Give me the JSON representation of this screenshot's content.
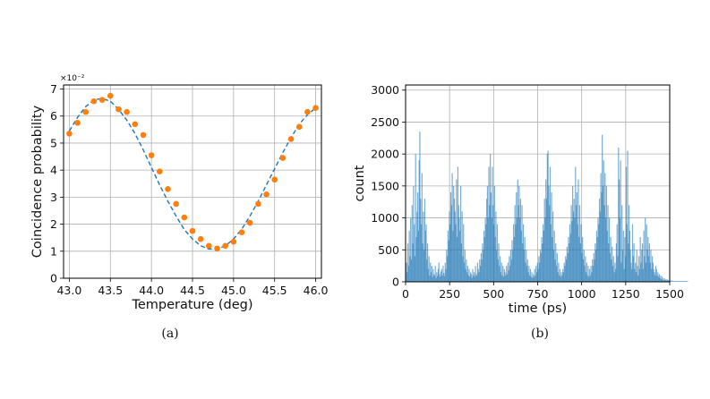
{
  "colors": {
    "fit_line": "#1f77b4",
    "points": "#ff7f0e",
    "bars": "#1f77b4",
    "grid": "#b0b0b0"
  },
  "chart_data": [
    {
      "type": "scatter",
      "caption": "(a)",
      "xlabel": "Temperature (deg)",
      "ylabel": "Coincidence probability",
      "y_multiplier": "×10⁻²",
      "xlim": [
        42.93,
        46.07
      ],
      "ylim": [
        0,
        7.15
      ],
      "xticks": [
        "43.0",
        "43.5",
        "44.0",
        "44.5",
        "45.0",
        "45.5",
        "46.0"
      ],
      "xtick_values": [
        43.0,
        43.5,
        44.0,
        44.5,
        45.0,
        45.5,
        46.0
      ],
      "yticks": [
        "0",
        "1",
        "2",
        "3",
        "4",
        "5",
        "6",
        "7"
      ],
      "ytick_values": [
        0,
        1,
        2,
        3,
        4,
        5,
        6,
        7
      ],
      "grid": true,
      "series": [
        {
          "kind": "points",
          "x": [
            43.0,
            43.1,
            43.2,
            43.3,
            43.4,
            43.5,
            43.6,
            43.7,
            43.8,
            43.9,
            44.0,
            44.1,
            44.2,
            44.3,
            44.4,
            44.5,
            44.6,
            44.7,
            44.8,
            44.9,
            45.0,
            45.1,
            45.2,
            45.3,
            45.4,
            45.5,
            45.6,
            45.7,
            45.8,
            45.9,
            46.0
          ],
          "y": [
            5.35,
            5.75,
            6.15,
            6.55,
            6.6,
            6.75,
            6.25,
            6.15,
            5.7,
            5.3,
            4.55,
            3.95,
            3.3,
            2.75,
            2.25,
            1.75,
            1.45,
            1.2,
            1.1,
            1.2,
            1.35,
            1.7,
            2.05,
            2.75,
            3.1,
            3.65,
            4.45,
            5.15,
            5.6,
            6.15,
            6.3
          ]
        },
        {
          "kind": "fit",
          "style": "dashed",
          "x": [
            43.0,
            43.1,
            43.2,
            43.3,
            43.4,
            43.5,
            43.6,
            43.7,
            43.8,
            43.9,
            44.0,
            44.1,
            44.2,
            44.3,
            44.4,
            44.5,
            44.6,
            44.7,
            44.8,
            44.9,
            45.0,
            45.1,
            45.2,
            45.3,
            45.4,
            45.5,
            45.6,
            45.7,
            45.8,
            45.9,
            46.0
          ],
          "y": [
            5.45,
            5.95,
            6.35,
            6.6,
            6.65,
            6.55,
            6.25,
            5.85,
            5.35,
            4.75,
            4.1,
            3.45,
            2.85,
            2.3,
            1.8,
            1.45,
            1.2,
            1.08,
            1.08,
            1.2,
            1.45,
            1.82,
            2.3,
            2.85,
            3.45,
            4.05,
            4.65,
            5.2,
            5.7,
            6.05,
            6.3
          ]
        }
      ]
    },
    {
      "type": "bar",
      "caption": "(b)",
      "xlabel": "time (ps)",
      "ylabel": "count",
      "xlim": [
        0,
        1500
      ],
      "ylim": [
        0,
        3080
      ],
      "xticks": [
        "0",
        "250",
        "500",
        "750",
        "1000",
        "1250",
        "1500"
      ],
      "xtick_values": [
        0,
        250,
        500,
        750,
        1000,
        1250,
        1500
      ],
      "yticks": [
        "0",
        "500",
        "1000",
        "1500",
        "2000",
        "2500",
        "3000"
      ],
      "ytick_values": [
        0,
        500,
        1000,
        1500,
        2000,
        2500,
        3000
      ],
      "grid": true,
      "bin_width": 4,
      "x_start": 2,
      "values": [
        300,
        150,
        600,
        250,
        800,
        400,
        1000,
        350,
        1200,
        600,
        1500,
        900,
        400,
        2000,
        700,
        1100,
        1400,
        800,
        1900,
        2350,
        1300,
        900,
        1700,
        600,
        1100,
        500,
        1300,
        800,
        900,
        350,
        600,
        200,
        400,
        100,
        300,
        150,
        250,
        80,
        200,
        120,
        100,
        250,
        60,
        150,
        90,
        200,
        300,
        120,
        80,
        160,
        200,
        100,
        250,
        140,
        90,
        300,
        200,
        500,
        400,
        800,
        650,
        1100,
        900,
        1400,
        1200,
        1700,
        800,
        1500,
        1300,
        1100,
        900,
        1600,
        700,
        1800,
        1200,
        1000,
        800,
        1500,
        600,
        1100,
        400,
        900,
        300,
        500,
        200,
        350,
        150,
        250,
        100,
        200,
        80,
        150,
        120,
        60,
        200,
        100,
        150,
        80,
        250,
        120,
        100,
        300,
        200,
        150,
        350,
        250,
        450,
        350,
        600,
        500,
        800,
        700,
        1000,
        900,
        1300,
        1500,
        1000,
        1800,
        1200,
        2000,
        1400,
        1000,
        1800,
        1200,
        900,
        1500,
        700,
        1100,
        500,
        900,
        350,
        600,
        250,
        400,
        150,
        300,
        100,
        250,
        80,
        200,
        150,
        100,
        250,
        120,
        300,
        180,
        400,
        250,
        500,
        350,
        650,
        500,
        900,
        700,
        1200,
        900,
        1400,
        1000,
        1600,
        1200,
        1500,
        1000,
        1300,
        800,
        1200,
        600,
        900,
        500,
        700,
        300,
        500,
        250,
        350,
        150,
        250,
        100,
        200,
        80,
        150,
        60,
        120,
        80,
        200,
        100,
        250,
        150,
        300,
        200,
        400,
        300,
        500,
        450,
        700,
        600,
        900,
        800,
        1300,
        1000,
        1600,
        1300,
        2000,
        2050,
        1500,
        1200,
        1800,
        900,
        1400,
        700,
        1100,
        500,
        800,
        350,
        600,
        250,
        450,
        150,
        300,
        100,
        200,
        80,
        150,
        100,
        200,
        150,
        300,
        250,
        400,
        350,
        550,
        450,
        700,
        600,
        900,
        750,
        1200,
        950,
        1500,
        1100,
        1300,
        1000,
        1800,
        1200,
        1400,
        900,
        1600,
        700,
        1200,
        600,
        900,
        450,
        700,
        350,
        500,
        250,
        400,
        150,
        300,
        100,
        250,
        80,
        200,
        100,
        250,
        150,
        350,
        250,
        450,
        350,
        600,
        500,
        800,
        700,
        1000,
        900,
        1300,
        1100,
        1700,
        1400,
        2300,
        1500,
        1900,
        1200,
        1700,
        1000,
        1500,
        800,
        1200,
        600,
        1000,
        450,
        700,
        350,
        550,
        250,
        400,
        150,
        300,
        200,
        600,
        900,
        400,
        2100,
        1600,
        1000,
        1900,
        300,
        1200,
        500,
        800,
        200,
        700,
        400,
        1800,
        900,
        2050,
        600,
        1200,
        800,
        500,
        300,
        200,
        900,
        400,
        600,
        200,
        300,
        150,
        500,
        250,
        100,
        400,
        200,
        700,
        300,
        500,
        600,
        200,
        800,
        400,
        1000,
        300,
        900,
        500,
        700,
        400,
        600,
        300,
        500,
        200,
        400,
        300,
        200,
        150,
        100,
        250,
        200,
        100,
        150,
        80,
        120,
        60,
        100,
        40,
        80,
        30,
        60,
        20,
        50,
        30,
        20,
        40,
        30,
        20,
        15,
        25,
        15,
        10,
        20,
        10,
        10,
        10,
        10,
        10,
        10,
        10,
        10,
        10,
        10,
        10,
        10,
        10,
        10,
        10,
        10,
        10,
        10,
        10,
        10,
        10,
        10
      ]
    }
  ]
}
